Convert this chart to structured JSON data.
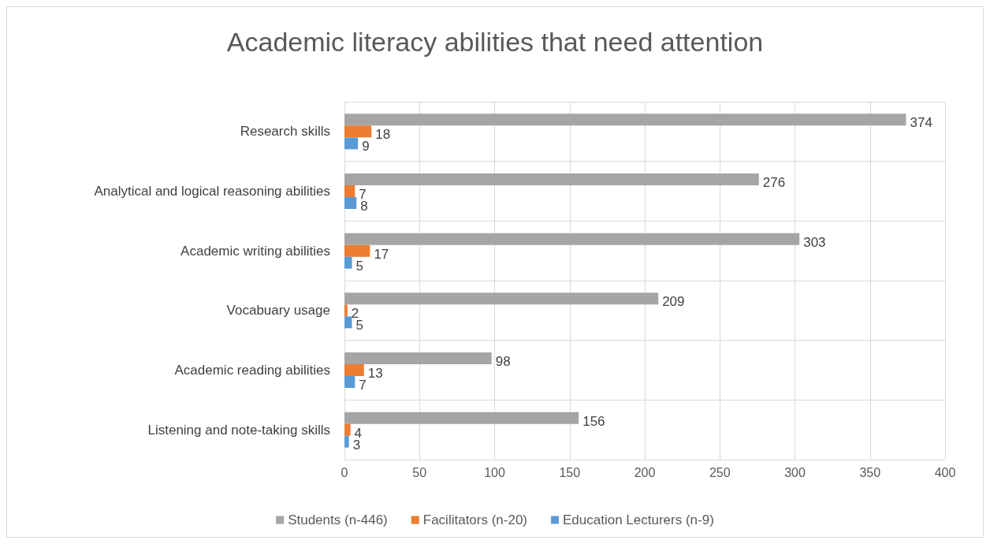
{
  "chart_data": {
    "type": "bar",
    "orientation": "horizontal",
    "title": "Academic literacy abilities that need attention",
    "categories": [
      "Research skills",
      "Analytical and logical reasoning abilities",
      "Academic writing abilities",
      "Vocabuary usage",
      "Academic reading abilities",
      "Listening and note-taking skills"
    ],
    "series": [
      {
        "name": "Students (n-446)",
        "color": "#a5a5a5",
        "values": [
          374,
          276,
          303,
          209,
          98,
          156
        ]
      },
      {
        "name": "Facilitators (n-20)",
        "color": "#ed7d31",
        "values": [
          18,
          7,
          17,
          2,
          13,
          4
        ]
      },
      {
        "name": "Education Lecturers (n-9)",
        "color": "#5b9bd5",
        "values": [
          9,
          8,
          5,
          5,
          7,
          3
        ]
      }
    ],
    "xlim": [
      0,
      400
    ],
    "xticks": [
      0,
      50,
      100,
      150,
      200,
      250,
      300,
      350,
      400
    ],
    "grid": true,
    "legend": "bottom",
    "data_labels": true
  }
}
